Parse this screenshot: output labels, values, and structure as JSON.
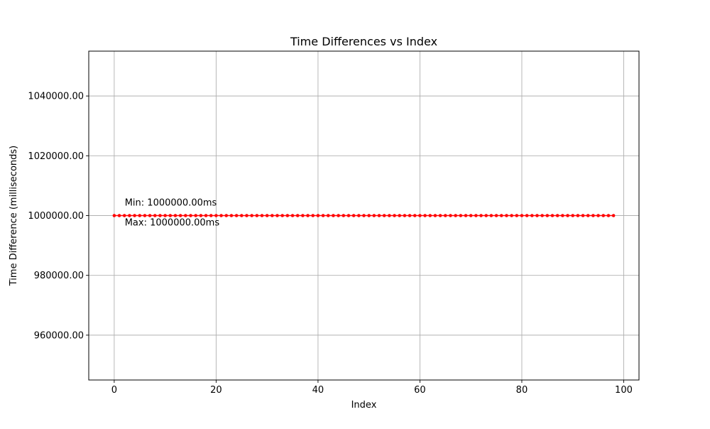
{
  "chart_data": {
    "type": "line",
    "title": "Time Differences vs Index",
    "xlabel": "Index",
    "ylabel": "Time Difference (milliseconds)",
    "xlim": [
      -5,
      103
    ],
    "ylim": [
      945000,
      1055000
    ],
    "xticks": [
      0,
      20,
      40,
      60,
      80,
      100
    ],
    "xtick_labels": [
      "0",
      "20",
      "40",
      "60",
      "80",
      "100"
    ],
    "yticks": [
      960000,
      980000,
      1000000,
      1020000,
      1040000
    ],
    "ytick_labels": [
      "960000.00",
      "980000.00",
      "1000000.00",
      "1020000.00",
      "1040000.00"
    ],
    "grid": true,
    "series": [
      {
        "color": "#ff0000",
        "marker": "circle",
        "x_start": 0,
        "x_end": 98,
        "x_step": 1,
        "constant_y": 1000000
      }
    ],
    "annotations": [
      {
        "id": "min",
        "text": "Min: 1000000.00ms",
        "x": 2,
        "y": 1000000,
        "position": "above"
      },
      {
        "id": "max",
        "text": "Max: 1000000.00ms",
        "x": 2,
        "y": 1000000,
        "position": "below"
      }
    ]
  }
}
